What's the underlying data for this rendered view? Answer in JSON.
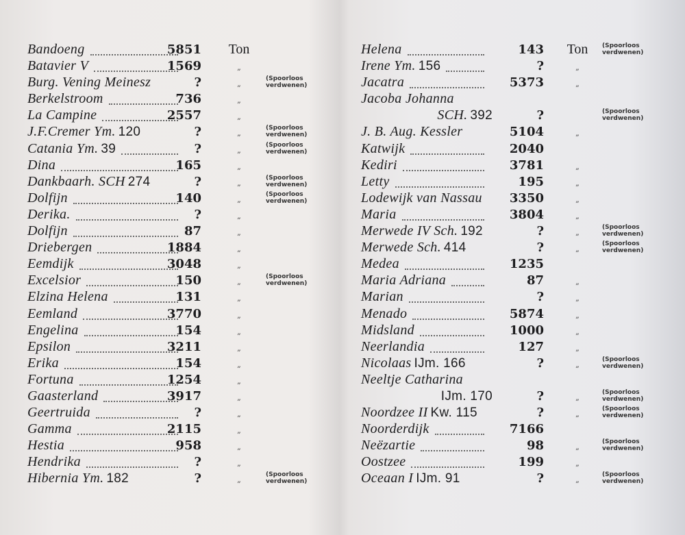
{
  "left_page": {
    "entries": [
      {
        "name": "Bandoeng",
        "reg": "",
        "tonnage": "5851",
        "unit": "Ton",
        "note": "",
        "dots": true
      },
      {
        "name": "Batavier V",
        "reg": "",
        "tonnage": "1569",
        "unit": "„",
        "note": "",
        "dots": true
      },
      {
        "name": "Burg. Vening Meinesz",
        "reg": "",
        "tonnage": "?",
        "unit": "„",
        "note": "(Spoorloos\nverdwenen)",
        "dots": false
      },
      {
        "name": "Berkelstroom",
        "reg": "",
        "tonnage": "736",
        "unit": "„",
        "note": "",
        "dots": true
      },
      {
        "name": "La Campine",
        "reg": "",
        "tonnage": "2557",
        "unit": "„",
        "note": "",
        "dots": true
      },
      {
        "name": "J.F.Cremer Ym.",
        "reg": "120",
        "tonnage": "?",
        "unit": "„",
        "note": "(Spoorloos\nverdwenen)",
        "dots": false
      },
      {
        "name": "Catania Ym.",
        "reg": "39",
        "tonnage": "?",
        "unit": "„",
        "note": "(Spoorloos\nverdwenen)",
        "dots": true
      },
      {
        "name": "Dina",
        "reg": "",
        "tonnage": "165",
        "unit": "„",
        "note": "",
        "dots": true
      },
      {
        "name": "Dankbaarh. SCH",
        "reg": "274",
        "tonnage": "?",
        "unit": "„",
        "note": "(Spoorloos\nverdwenen)",
        "dots": false
      },
      {
        "name": "Dolfijn",
        "reg": "",
        "tonnage": "140",
        "unit": "„",
        "note": "(Spoorloos\nverdwenen)",
        "dots": true
      },
      {
        "name": "Derika.",
        "reg": "",
        "tonnage": "?",
        "unit": "„",
        "note": "",
        "dots": true
      },
      {
        "name": "Dolfijn",
        "reg": "",
        "tonnage": "87",
        "unit": "„",
        "note": "",
        "dots": true
      },
      {
        "name": "Driebergen",
        "reg": "",
        "tonnage": "1884",
        "unit": "„",
        "note": "",
        "dots": true
      },
      {
        "name": "Eemdijk",
        "reg": "",
        "tonnage": "3048",
        "unit": "„",
        "note": "",
        "dots": true
      },
      {
        "name": "Excelsior",
        "reg": "",
        "tonnage": "150",
        "unit": "„",
        "note": "(Spoorloos\nverdwenen)",
        "dots": true
      },
      {
        "name": "Elzina Helena",
        "reg": "",
        "tonnage": "131",
        "unit": "„",
        "note": "",
        "dots": true
      },
      {
        "name": "Eemland",
        "reg": "",
        "tonnage": "3770",
        "unit": "„",
        "note": "",
        "dots": true
      },
      {
        "name": "Engelina",
        "reg": "",
        "tonnage": "154",
        "unit": "„",
        "note": "",
        "dots": true
      },
      {
        "name": "Epsilon",
        "reg": "",
        "tonnage": "3211",
        "unit": "„",
        "note": "",
        "dots": true
      },
      {
        "name": "Erika",
        "reg": "",
        "tonnage": "154",
        "unit": "„",
        "note": "",
        "dots": true
      },
      {
        "name": "Fortuna",
        "reg": "",
        "tonnage": "1254",
        "unit": "„",
        "note": "",
        "dots": true
      },
      {
        "name": "Gaasterland",
        "reg": "",
        "tonnage": "3917",
        "unit": "„",
        "note": "",
        "dots": true
      },
      {
        "name": "Geertruida",
        "reg": "",
        "tonnage": "?",
        "unit": "„",
        "note": "",
        "dots": true
      },
      {
        "name": "Gamma",
        "reg": "",
        "tonnage": "2115",
        "unit": "„",
        "note": "",
        "dots": true
      },
      {
        "name": "Hestia",
        "reg": "",
        "tonnage": "958",
        "unit": "„",
        "note": "",
        "dots": true
      },
      {
        "name": "Hendrika",
        "reg": "",
        "tonnage": "?",
        "unit": "„",
        "note": "",
        "dots": true
      },
      {
        "name": "Hibernia Ym.",
        "reg": "182",
        "tonnage": "?",
        "unit": "„",
        "note": "(Spoorloos\nverdwenen)",
        "dots": false
      }
    ]
  },
  "right_page": {
    "entries": [
      {
        "name": "Helena",
        "reg": "",
        "tonnage": "143",
        "unit": "Ton",
        "note": "(Spoorloos\nverdwenen)",
        "dots": true
      },
      {
        "name": "Irene Ym.",
        "reg": "156",
        "tonnage": "?",
        "unit": "„",
        "note": "",
        "dots": true
      },
      {
        "name": "Jacatra",
        "reg": "",
        "tonnage": "5373",
        "unit": "„",
        "note": "",
        "dots": true
      },
      {
        "name": "Jacoba Johanna",
        "reg2_prefix": "SCH.",
        "reg": "392",
        "tonnage": "?",
        "unit": "",
        "note": "(Spoorloos\nverdwenen)",
        "dots": false,
        "wrap": true
      },
      {
        "name": "J. B. Aug. Kessler",
        "reg": "",
        "tonnage": "5104",
        "unit": "„",
        "note": "",
        "dots": false
      },
      {
        "name": "Katwijk",
        "reg": "",
        "tonnage": "2040",
        "unit": "",
        "note": "",
        "dots": true
      },
      {
        "name": "Kediri",
        "reg": "",
        "tonnage": "3781",
        "unit": "„",
        "note": "",
        "dots": true
      },
      {
        "name": "Letty",
        "reg": "",
        "tonnage": "195",
        "unit": "„",
        "note": "",
        "dots": true
      },
      {
        "name": "Lodewijk van Nassau",
        "reg": "",
        "tonnage": "3350",
        "unit": "„",
        "note": "",
        "dots": false
      },
      {
        "name": "Maria",
        "reg": "",
        "tonnage": "3804",
        "unit": "„",
        "note": "",
        "dots": true
      },
      {
        "name": "Merwede IV Sch.",
        "reg": "192",
        "tonnage": "?",
        "unit": "„",
        "note": "(Spoorloos\nverdwenen)",
        "dots": false
      },
      {
        "name": "Merwede Sch.",
        "reg": "414",
        "tonnage": "?",
        "unit": "„",
        "note": "(Spoorloos\nverdwenen)",
        "dots": false
      },
      {
        "name": "Medea",
        "reg": "",
        "tonnage": "1235",
        "unit": "",
        "note": "",
        "dots": true
      },
      {
        "name": "Maria Adriana",
        "reg": "",
        "tonnage": "87",
        "unit": "„",
        "note": "",
        "dots": true
      },
      {
        "name": "Marian",
        "reg": "",
        "tonnage": "?",
        "unit": "„",
        "note": "",
        "dots": true
      },
      {
        "name": "Menado",
        "reg": "",
        "tonnage": "5874",
        "unit": "„",
        "note": "",
        "dots": true
      },
      {
        "name": "Midsland",
        "reg": "",
        "tonnage": "1000",
        "unit": "„",
        "note": "",
        "dots": true
      },
      {
        "name": "Neerlandia",
        "reg": "",
        "tonnage": "127",
        "unit": "„",
        "note": "",
        "dots": true
      },
      {
        "name": "Nicolaas",
        "reg": "IJm. 166",
        "tonnage": "?",
        "unit": "„",
        "note": "(Spoorloos\nverdwenen)",
        "dots": false
      },
      {
        "name": "Neeltje Catharina",
        "reg2_prefix": "",
        "reg": "IJm. 170",
        "tonnage": "?",
        "unit": "„",
        "note": "(Spoorloos\nverdwenen)",
        "dots": false,
        "wrap": true
      },
      {
        "name": "Noordzee II",
        "reg": "Kw. 115",
        "tonnage": "?",
        "unit": "„",
        "note": "(Spoorloos\nverdwenen)",
        "dots": false
      },
      {
        "name": "Noorderdijk",
        "reg": "",
        "tonnage": "7166",
        "unit": "",
        "note": "",
        "dots": true
      },
      {
        "name": "Neëzartie",
        "reg": "",
        "tonnage": "98",
        "unit": "„",
        "note": "(Spoorloos\nverdwenen)",
        "dots": true
      },
      {
        "name": "Oostzee",
        "reg": "",
        "tonnage": "199",
        "unit": "„",
        "note": "",
        "dots": true
      },
      {
        "name": "Oceaan I",
        "reg": "IJm. 91",
        "tonnage": "?",
        "unit": "„",
        "note": "(Spoorloos\nverdwenen)",
        "dots": false
      }
    ]
  }
}
